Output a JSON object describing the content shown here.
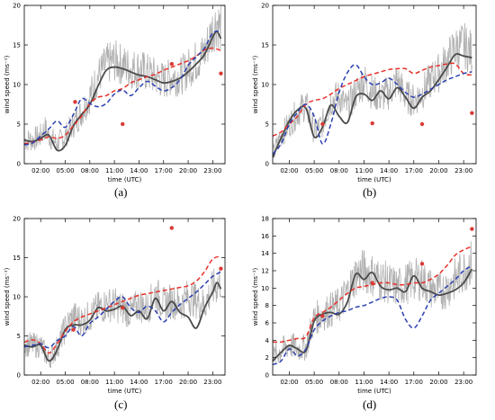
{
  "captions": [
    "(a)",
    "(b)",
    "(c)",
    "(d)"
  ],
  "chart_data": [
    {
      "type": "line",
      "panel": "(a)",
      "xlabel": "time (UTC)",
      "ylabel": "wind speed (ms⁻¹)",
      "xlim": [
        0,
        24.5
      ],
      "ylim": [
        0,
        20
      ],
      "x_ticks": [
        2,
        5,
        8,
        11,
        14,
        17,
        20,
        23
      ],
      "x_tick_labels": [
        "02:00",
        "05:00",
        "08:00",
        "11:00",
        "14:00",
        "17:00",
        "20:00",
        "23:00"
      ],
      "y_ticks": [
        0,
        5,
        10,
        15,
        20
      ],
      "observed_raw": {
        "x": [
          0,
          1,
          2,
          2.5,
          3,
          4,
          5,
          6,
          7,
          8,
          9,
          10,
          11,
          12,
          13,
          14,
          15,
          16,
          17,
          18,
          19,
          20,
          21,
          22,
          23,
          23.5,
          24
        ],
        "y": [
          3.0,
          3.0,
          3.5,
          4.5,
          3.5,
          2.5,
          3.5,
          5.0,
          6.5,
          8.5,
          11,
          12.5,
          13,
          12.5,
          12,
          12,
          11.5,
          11,
          10.5,
          11,
          11,
          12,
          13,
          14,
          17,
          18,
          17
        ]
      },
      "observed_smooth": {
        "x": [
          0,
          1,
          2,
          3,
          4,
          5,
          6,
          7,
          8,
          9,
          10,
          11,
          12,
          13,
          14,
          15,
          16,
          17,
          18,
          19,
          20,
          21,
          22,
          23,
          23.5,
          24
        ],
        "y": [
          3.0,
          2.8,
          3.2,
          3.6,
          1.7,
          2.3,
          4.8,
          6.2,
          7.5,
          9.8,
          11.8,
          12.2,
          12.0,
          11.6,
          11.2,
          11.0,
          10.6,
          10.2,
          10.4,
          10.8,
          11.6,
          12.6,
          13.8,
          16.0,
          16.7,
          15.8
        ]
      },
      "model_red": {
        "x": [
          0,
          1,
          2,
          3,
          4,
          5,
          6,
          7,
          8,
          9,
          10,
          11,
          12,
          13,
          14,
          15,
          16,
          17,
          18,
          19,
          20,
          21,
          22,
          23,
          24
        ],
        "y": [
          2.5,
          2.7,
          3.0,
          3.4,
          3.2,
          3.6,
          4.8,
          6.0,
          7.6,
          8.4,
          8.6,
          9.2,
          9.5,
          10.2,
          10.6,
          11.0,
          11.3,
          11.8,
          12.2,
          12.6,
          13.0,
          13.6,
          14.4,
          14.6,
          14.3
        ]
      },
      "model_blue": {
        "x": [
          0,
          1,
          2,
          3,
          4,
          5,
          6,
          7,
          8,
          9,
          10,
          11,
          12,
          13,
          14,
          15,
          16,
          17,
          18,
          19,
          20,
          21,
          22,
          23,
          24
        ],
        "y": [
          2.4,
          2.6,
          3.5,
          4.4,
          5.4,
          4.6,
          6.2,
          8.2,
          7.6,
          7.2,
          7.6,
          8.8,
          9.3,
          8.6,
          9.6,
          10.4,
          9.8,
          9.2,
          9.6,
          10.6,
          12.4,
          13.5,
          14.6,
          16.5,
          16.8
        ]
      },
      "obs_points": {
        "x": [
          6.2,
          12.0,
          18.0,
          24.0
        ],
        "y": [
          7.8,
          5.0,
          12.6,
          11.4
        ]
      }
    },
    {
      "type": "line",
      "panel": "(b)",
      "xlabel": "time (UTC)",
      "ylabel": "wind speed (ms⁻¹)",
      "xlim": [
        0,
        24.5
      ],
      "ylim": [
        0,
        20
      ],
      "x_ticks": [
        2,
        5,
        8,
        11,
        14,
        17,
        20,
        23
      ],
      "x_tick_labels": [
        "02:00",
        "05:00",
        "08:00",
        "11:00",
        "14:00",
        "17:00",
        "20:00",
        "23:00"
      ],
      "y_ticks": [
        0,
        5,
        10,
        15,
        20
      ],
      "observed_raw": {
        "x": [
          0,
          1,
          2,
          3,
          4,
          5,
          6,
          7,
          8,
          9,
          10,
          11,
          12,
          13,
          14,
          15,
          16,
          17,
          18,
          19,
          20,
          21,
          22,
          23,
          24
        ],
        "y": [
          1.0,
          3.5,
          5.0,
          6.5,
          7.5,
          4.0,
          5.0,
          8.0,
          8.5,
          7.0,
          9.0,
          10.5,
          9.0,
          8.5,
          9.0,
          10.5,
          8.5,
          8.0,
          9.0,
          10.5,
          11.5,
          13.0,
          14.5,
          15.0,
          14.0
        ]
      },
      "observed_smooth": {
        "x": [
          0,
          1,
          2,
          3,
          4,
          5,
          6,
          7,
          8,
          9,
          10,
          11,
          12,
          13,
          14,
          15,
          16,
          17,
          18,
          19,
          20,
          21,
          22,
          23,
          24
        ],
        "y": [
          0.8,
          3.2,
          5.4,
          6.8,
          7.0,
          3.4,
          4.6,
          7.4,
          6.0,
          5.2,
          8.4,
          8.8,
          8.0,
          9.2,
          8.2,
          9.6,
          8.4,
          7.0,
          8.4,
          9.2,
          10.6,
          12.2,
          13.8,
          13.6,
          13.4
        ]
      },
      "model_red": {
        "x": [
          0,
          1,
          2,
          3,
          4,
          5,
          6,
          7,
          8,
          9,
          10,
          11,
          12,
          13,
          14,
          15,
          16,
          17,
          18,
          19,
          20,
          21,
          22,
          23,
          24
        ],
        "y": [
          3.5,
          4.0,
          5.0,
          6.0,
          7.5,
          8.0,
          8.2,
          8.8,
          9.5,
          10.0,
          10.5,
          11.0,
          11.3,
          11.6,
          11.9,
          12.0,
          12.0,
          11.4,
          11.8,
          12.2,
          12.4,
          12.6,
          12.6,
          11.4,
          11.2
        ]
      },
      "model_blue": {
        "x": [
          0,
          1,
          2,
          3,
          4,
          5,
          6,
          7,
          8,
          9,
          10,
          11,
          12,
          13,
          14,
          15,
          16,
          17,
          18,
          19,
          20,
          21,
          22,
          23,
          24
        ],
        "y": [
          1.2,
          2.5,
          5.0,
          6.5,
          7.5,
          6.0,
          2.5,
          5.0,
          9.0,
          11.5,
          12.5,
          11.0,
          10.0,
          10.2,
          10.8,
          10.0,
          9.0,
          8.4,
          8.8,
          9.4,
          10.0,
          10.6,
          11.0,
          11.4,
          11.6
        ]
      },
      "obs_points": {
        "x": [
          6.0,
          12.0,
          18.0,
          24.0
        ],
        "y": [
          5.0,
          5.1,
          5.0,
          6.4
        ]
      }
    },
    {
      "type": "line",
      "panel": "(c)",
      "xlabel": "time (UTC)",
      "ylabel": "wind speed (ms⁻¹)",
      "xlim": [
        0,
        24.5
      ],
      "ylim": [
        0,
        20
      ],
      "x_ticks": [
        2,
        5,
        8,
        11,
        14,
        17,
        20,
        23
      ],
      "x_tick_labels": [
        "02:00",
        "05:00",
        "08:00",
        "11:00",
        "14:00",
        "17:00",
        "20:00",
        "23:00"
      ],
      "y_ticks": [
        0,
        5,
        10,
        15,
        20
      ],
      "observed_raw": {
        "x": [
          0,
          1,
          2,
          3,
          4,
          5,
          6,
          7,
          8,
          9,
          10,
          11,
          12,
          13,
          14,
          15,
          16,
          17,
          18,
          19,
          20,
          21,
          22,
          23,
          24
        ],
        "y": [
          4.0,
          3.8,
          3.8,
          2.0,
          3.5,
          6.0,
          7.5,
          7.0,
          7.5,
          8.5,
          9.0,
          9.0,
          8.5,
          8.0,
          9.0,
          8.5,
          10.5,
          9.0,
          9.5,
          9.0,
          10.0,
          9.5,
          9.0,
          11.0,
          12.0
        ]
      },
      "observed_smooth": {
        "x": [
          0,
          1,
          2,
          3,
          4,
          5,
          6,
          7,
          8,
          9,
          10,
          11,
          12,
          13,
          14,
          15,
          16,
          17,
          18,
          19,
          20,
          21,
          22,
          23,
          23.5,
          24
        ],
        "y": [
          3.8,
          3.6,
          3.8,
          1.8,
          3.2,
          5.8,
          6.4,
          6.4,
          7.0,
          8.6,
          8.2,
          8.4,
          8.8,
          7.6,
          8.2,
          7.2,
          9.8,
          8.2,
          9.4,
          8.0,
          7.4,
          6.0,
          8.6,
          10.6,
          11.8,
          11.0
        ]
      },
      "model_red": {
        "x": [
          0,
          1,
          2,
          3,
          4,
          5,
          6,
          7,
          8,
          9,
          10,
          11,
          12,
          13,
          14,
          15,
          16,
          17,
          18,
          19,
          20,
          21,
          22,
          23,
          24
        ],
        "y": [
          4.2,
          4.5,
          4.0,
          2.8,
          4.0,
          5.6,
          6.8,
          7.4,
          7.8,
          8.2,
          8.6,
          9.0,
          9.4,
          9.8,
          10.2,
          10.4,
          10.6,
          10.8,
          11.0,
          11.2,
          11.4,
          12.0,
          13.2,
          14.8,
          15.2
        ]
      },
      "model_blue": {
        "x": [
          0,
          1,
          2,
          3,
          4,
          5,
          6,
          7,
          8,
          9,
          10,
          11,
          12,
          13,
          14,
          15,
          16,
          17,
          18,
          19,
          20,
          21,
          22,
          23,
          24
        ],
        "y": [
          3.6,
          3.8,
          4.0,
          3.5,
          4.4,
          5.0,
          6.2,
          5.0,
          6.6,
          7.4,
          8.4,
          9.4,
          10.0,
          8.6,
          8.0,
          8.8,
          8.2,
          6.8,
          8.0,
          9.0,
          9.8,
          10.6,
          11.6,
          12.6,
          13.2
        ]
      },
      "obs_points": {
        "x": [
          6.0,
          12.0,
          18.0,
          24.0
        ],
        "y": [
          5.8,
          8.6,
          18.8,
          13.6
        ]
      }
    },
    {
      "type": "line",
      "panel": "(d)",
      "xlabel": "time (UTC)",
      "ylabel": "wind speed (ms⁻¹)",
      "xlim": [
        0,
        24.5
      ],
      "ylim": [
        0,
        18
      ],
      "x_ticks": [
        2,
        5,
        8,
        11,
        14,
        17,
        20,
        23
      ],
      "x_tick_labels": [
        "02:00",
        "05:00",
        "08:00",
        "11:00",
        "14:00",
        "17:00",
        "20:00",
        "23:00"
      ],
      "y_ticks": [
        0,
        2,
        4,
        6,
        8,
        10,
        12,
        14,
        16,
        18
      ],
      "observed_raw": {
        "x": [
          0,
          1,
          2,
          3,
          4,
          5,
          6,
          7,
          8,
          9,
          10,
          11,
          12,
          13,
          14,
          15,
          16,
          17,
          18,
          19,
          20,
          21,
          22,
          23,
          24
        ],
        "y": [
          2.0,
          2.8,
          3.5,
          3.0,
          3.2,
          6.5,
          7.0,
          7.5,
          8.0,
          9.5,
          11.5,
          12.0,
          11.5,
          11.0,
          10.5,
          10.0,
          10.5,
          11.0,
          11.0,
          10.0,
          9.5,
          10.0,
          11.0,
          12.0,
          13.0
        ]
      },
      "observed_smooth": {
        "x": [
          0,
          1,
          2,
          3,
          4,
          5,
          6,
          7,
          8,
          9,
          10,
          11,
          12,
          13,
          14,
          15,
          16,
          17,
          18,
          19,
          20,
          21,
          22,
          23,
          24
        ],
        "y": [
          1.6,
          2.6,
          3.4,
          3.0,
          2.8,
          6.2,
          7.0,
          7.2,
          7.0,
          8.4,
          11.6,
          11.0,
          11.8,
          10.2,
          9.8,
          10.0,
          9.6,
          11.4,
          10.0,
          9.6,
          9.2,
          9.4,
          9.8,
          10.6,
          12.2
        ]
      },
      "model_red": {
        "x": [
          0,
          1,
          2,
          3,
          4,
          5,
          6,
          7,
          8,
          9,
          10,
          11,
          12,
          13,
          14,
          15,
          16,
          17,
          18,
          19,
          20,
          21,
          22,
          23,
          24
        ],
        "y": [
          3.8,
          3.8,
          4.0,
          4.2,
          4.4,
          6.6,
          7.2,
          7.8,
          8.6,
          9.4,
          10.0,
          10.2,
          10.4,
          10.6,
          10.6,
          10.4,
          10.4,
          10.6,
          10.6,
          11.0,
          11.6,
          12.6,
          13.8,
          14.4,
          14.8
        ]
      },
      "model_blue": {
        "x": [
          0,
          1,
          2,
          3,
          4,
          5,
          6,
          7,
          8,
          9,
          10,
          11,
          12,
          13,
          14,
          15,
          16,
          17,
          18,
          19,
          20,
          21,
          22,
          23,
          24
        ],
        "y": [
          1.2,
          1.6,
          3.0,
          2.2,
          3.0,
          5.2,
          6.2,
          6.8,
          7.2,
          7.4,
          7.8,
          8.0,
          8.4,
          8.8,
          9.0,
          8.6,
          6.4,
          5.4,
          6.8,
          8.6,
          9.4,
          10.2,
          11.0,
          12.0,
          12.6
        ]
      },
      "obs_points": {
        "x": [
          6.0,
          12.0,
          18.0,
          24.0
        ],
        "y": [
          6.8,
          10.6,
          12.8,
          16.8
        ]
      }
    }
  ]
}
